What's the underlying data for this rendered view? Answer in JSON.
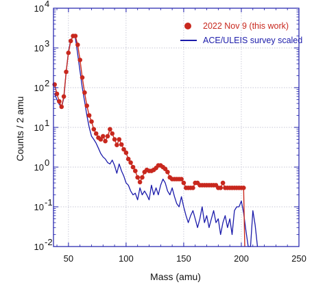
{
  "chart_data": {
    "type": "line",
    "xlabel": "Mass (amu)",
    "ylabel": "Counts / 2 amu",
    "xlim": [
      37,
      250
    ],
    "ylim": [
      0.01,
      10000
    ],
    "yscale": "log",
    "x_ticks": [
      50,
      100,
      150,
      200,
      250
    ],
    "x_tick_labels": [
      "50",
      "100",
      "150",
      "200",
      "250"
    ],
    "y_ticks": [
      0.01,
      0.1,
      1,
      10,
      100,
      1000,
      10000
    ],
    "y_tick_bases": [
      "10",
      "10",
      "10",
      "10",
      "10",
      "10",
      "10"
    ],
    "y_tick_exponents": [
      "-2",
      "-1",
      "0",
      "1",
      "2",
      "3",
      "4"
    ],
    "grid": true,
    "legend_position": "top-right",
    "series": [
      {
        "name": "2022 Nov 9 (this work)",
        "color": "#c8281e",
        "marker": "circle",
        "points": [
          [
            38,
            120
          ],
          [
            40,
            70
          ],
          [
            42,
            45
          ],
          [
            44,
            33
          ],
          [
            46,
            60
          ],
          [
            48,
            250
          ],
          [
            50,
            750
          ],
          [
            52,
            1500
          ],
          [
            54,
            2000
          ],
          [
            56,
            2000
          ],
          [
            58,
            1200
          ],
          [
            60,
            500
          ],
          [
            62,
            180
          ],
          [
            64,
            75
          ],
          [
            66,
            35
          ],
          [
            68,
            20
          ],
          [
            70,
            14
          ],
          [
            72,
            9
          ],
          [
            74,
            7
          ],
          [
            76,
            5.5
          ],
          [
            78,
            5
          ],
          [
            80,
            6
          ],
          [
            82,
            4.5
          ],
          [
            84,
            6
          ],
          [
            86,
            9
          ],
          [
            88,
            7
          ],
          [
            90,
            5
          ],
          [
            92,
            3.6
          ],
          [
            94,
            5
          ],
          [
            96,
            3.7
          ],
          [
            98,
            2.8
          ],
          [
            100,
            2.3
          ],
          [
            102,
            1.6
          ],
          [
            104,
            1.3
          ],
          [
            106,
            1.0
          ],
          [
            108,
            0.8
          ],
          [
            110,
            0.55
          ],
          [
            112,
            0.42
          ],
          [
            114,
            0.55
          ],
          [
            116,
            0.75
          ],
          [
            118,
            0.85
          ],
          [
            120,
            0.8
          ],
          [
            122,
            0.8
          ],
          [
            124,
            0.85
          ],
          [
            126,
            0.95
          ],
          [
            128,
            1.1
          ],
          [
            130,
            1.1
          ],
          [
            132,
            1.0
          ],
          [
            134,
            0.9
          ],
          [
            136,
            0.75
          ],
          [
            138,
            0.55
          ],
          [
            140,
            0.5
          ],
          [
            142,
            0.5
          ],
          [
            144,
            0.5
          ],
          [
            146,
            0.5
          ],
          [
            148,
            0.5
          ],
          [
            150,
            0.4
          ],
          [
            152,
            0.3
          ],
          [
            154,
            0.3
          ],
          [
            156,
            0.3
          ],
          [
            158,
            0.3
          ],
          [
            160,
            0.4
          ],
          [
            162,
            0.4
          ],
          [
            164,
            0.35
          ],
          [
            166,
            0.35
          ],
          [
            168,
            0.35
          ],
          [
            170,
            0.35
          ],
          [
            172,
            0.35
          ],
          [
            174,
            0.35
          ],
          [
            176,
            0.35
          ],
          [
            178,
            0.35
          ],
          [
            180,
            0.3
          ],
          [
            182,
            0.3
          ],
          [
            184,
            0.4
          ],
          [
            186,
            0.3
          ],
          [
            188,
            0.3
          ],
          [
            190,
            0.3
          ],
          [
            192,
            0.3
          ],
          [
            194,
            0.3
          ],
          [
            196,
            0.3
          ],
          [
            198,
            0.3
          ],
          [
            200,
            0.3
          ],
          [
            202,
            0.3
          ]
        ],
        "tail": [
          [
            202,
            0.3
          ],
          [
            203,
            0.008
          ]
        ]
      },
      {
        "name": "ACE/ULEIS survey scaled",
        "color": "#1a1aaa",
        "marker": "none",
        "points": [
          [
            38,
            70
          ],
          [
            40,
            50
          ],
          [
            42,
            38
          ],
          [
            44,
            32
          ],
          [
            46,
            55
          ],
          [
            48,
            250
          ],
          [
            50,
            800
          ],
          [
            52,
            1600
          ],
          [
            54,
            1900
          ],
          [
            56,
            1800
          ],
          [
            58,
            700
          ],
          [
            60,
            260
          ],
          [
            62,
            100
          ],
          [
            64,
            45
          ],
          [
            66,
            20
          ],
          [
            68,
            10
          ],
          [
            70,
            6
          ],
          [
            72,
            5
          ],
          [
            74,
            4
          ],
          [
            76,
            3
          ],
          [
            78,
            2.2
          ],
          [
            80,
            1.8
          ],
          [
            82,
            1.6
          ],
          [
            84,
            1.3
          ],
          [
            86,
            1.2
          ],
          [
            88,
            1.5
          ],
          [
            90,
            1.1
          ],
          [
            92,
            0.7
          ],
          [
            94,
            1.2
          ],
          [
            96,
            0.8
          ],
          [
            98,
            0.6
          ],
          [
            100,
            0.4
          ],
          [
            102,
            0.35
          ],
          [
            104,
            0.25
          ],
          [
            106,
            0.2
          ],
          [
            108,
            0.22
          ],
          [
            110,
            0.15
          ],
          [
            112,
            0.3
          ],
          [
            114,
            0.2
          ],
          [
            116,
            0.25
          ],
          [
            118,
            0.2
          ],
          [
            120,
            0.15
          ],
          [
            122,
            0.35
          ],
          [
            124,
            0.2
          ],
          [
            126,
            0.3
          ],
          [
            128,
            0.2
          ],
          [
            130,
            0.35
          ],
          [
            132,
            0.5
          ],
          [
            134,
            0.4
          ],
          [
            136,
            0.25
          ],
          [
            138,
            0.2
          ],
          [
            140,
            0.3
          ],
          [
            142,
            0.18
          ],
          [
            144,
            0.12
          ],
          [
            146,
            0.1
          ],
          [
            148,
            0.18
          ],
          [
            150,
            0.1
          ],
          [
            152,
            0.06
          ],
          [
            154,
            0.04
          ],
          [
            156,
            0.06
          ],
          [
            158,
            0.08
          ],
          [
            160,
            0.05
          ],
          [
            162,
            0.03
          ],
          [
            164,
            0.05
          ],
          [
            166,
            0.1
          ],
          [
            168,
            0.04
          ],
          [
            170,
            0.06
          ],
          [
            172,
            0.03
          ],
          [
            174,
            0.05
          ],
          [
            176,
            0.08
          ],
          [
            178,
            0.04
          ],
          [
            180,
            0.05
          ],
          [
            182,
            0.02
          ],
          [
            184,
            0.04
          ],
          [
            186,
            0.06
          ],
          [
            188,
            0.03
          ],
          [
            190,
            0.05
          ],
          [
            192,
            0.02
          ],
          [
            194,
            0.08
          ],
          [
            196,
            0.1
          ],
          [
            198,
            0.1
          ],
          [
            200,
            0.14
          ],
          [
            202,
            0.07
          ],
          [
            204,
            0.025
          ],
          [
            206,
            0.01
          ],
          [
            208,
            0.01
          ],
          [
            210,
            0.08
          ],
          [
            212,
            0.035
          ],
          [
            214,
            0.008
          ]
        ]
      }
    ]
  }
}
